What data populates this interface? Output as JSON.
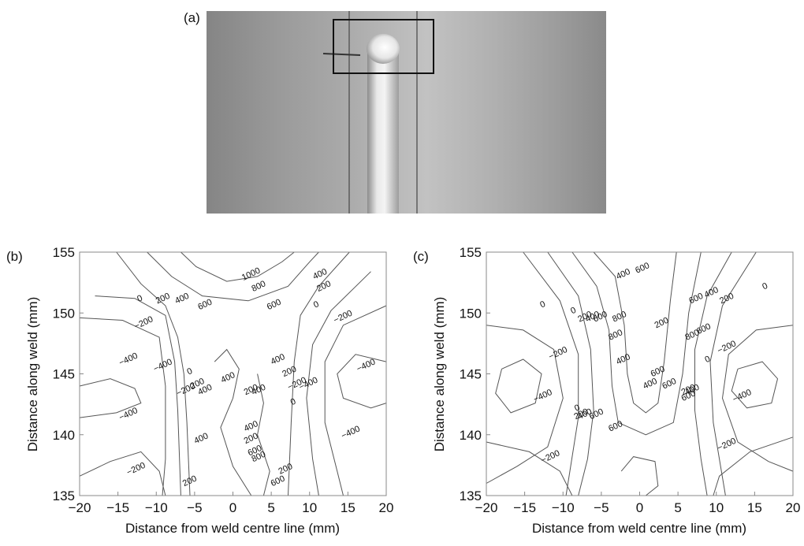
{
  "panel_a": {
    "label": "(a)"
  },
  "chart_data": [
    {
      "panel": "(b)",
      "type": "contour",
      "xlabel": "Distance from weld centre line (mm)",
      "ylabel": "Distance along weld (mm)",
      "xlim": [
        -20,
        20
      ],
      "ylim": [
        135,
        155
      ],
      "xticks": [
        "−20",
        "−15",
        "−10",
        "−5",
        "0",
        "5",
        "10",
        "15",
        "20"
      ],
      "yticks": [
        "135",
        "140",
        "145",
        "150",
        "155"
      ],
      "contour_labels": [
        {
          "text": "1000",
          "x": 2.5,
          "y": 153.0
        },
        {
          "text": "800",
          "x": 3.5,
          "y": 152.0
        },
        {
          "text": "400",
          "x": 11.5,
          "y": 153.0
        },
        {
          "text": "200",
          "x": 12.0,
          "y": 152.0
        },
        {
          "text": "0",
          "x": -12.0,
          "y": 151.0
        },
        {
          "text": "200",
          "x": -9.0,
          "y": 151.0
        },
        {
          "text": "400",
          "x": -6.5,
          "y": 151.0
        },
        {
          "text": "600",
          "x": -3.5,
          "y": 150.5
        },
        {
          "text": "600",
          "x": 5.5,
          "y": 150.5
        },
        {
          "text": "0",
          "x": 11.0,
          "y": 150.5
        },
        {
          "text": "−200",
          "x": -11.5,
          "y": 149.0
        },
        {
          "text": "−200",
          "x": 14.5,
          "y": 149.5
        },
        {
          "text": "−400",
          "x": -13.5,
          "y": 146.0
        },
        {
          "text": "−400",
          "x": -9.0,
          "y": 145.5
        },
        {
          "text": "−400",
          "x": 17.5,
          "y": 145.5
        },
        {
          "text": "0",
          "x": -5.5,
          "y": 145.0
        },
        {
          "text": "−200",
          "x": -6.0,
          "y": 143.5
        },
        {
          "text": "200",
          "x": -4.5,
          "y": 144.0
        },
        {
          "text": "400",
          "x": -3.5,
          "y": 143.5
        },
        {
          "text": "400",
          "x": -0.5,
          "y": 144.5
        },
        {
          "text": "200",
          "x": 2.5,
          "y": 143.5
        },
        {
          "text": "400",
          "x": 3.5,
          "y": 143.5
        },
        {
          "text": "400",
          "x": 6.0,
          "y": 146.0
        },
        {
          "text": "200",
          "x": 7.5,
          "y": 145.0
        },
        {
          "text": "−200",
          "x": 8.5,
          "y": 144.0
        },
        {
          "text": "−400",
          "x": 10.0,
          "y": 144.0
        },
        {
          "text": "0",
          "x": 8.0,
          "y": 142.5
        },
        {
          "text": "−400",
          "x": -13.5,
          "y": 141.5
        },
        {
          "text": "−400",
          "x": 15.5,
          "y": 140.0
        },
        {
          "text": "400",
          "x": 2.5,
          "y": 140.5
        },
        {
          "text": "200",
          "x": 2.5,
          "y": 139.5
        },
        {
          "text": "600",
          "x": 3.0,
          "y": 138.5
        },
        {
          "text": "800",
          "x": 3.5,
          "y": 138.0
        },
        {
          "text": "400",
          "x": -4.0,
          "y": 139.5
        },
        {
          "text": "200",
          "x": 7.0,
          "y": 137.0
        },
        {
          "text": "600",
          "x": 6.0,
          "y": 136.0
        },
        {
          "text": "−200",
          "x": -12.5,
          "y": 137.0
        },
        {
          "text": "200",
          "x": -5.5,
          "y": 136.0
        }
      ]
    },
    {
      "panel": "(c)",
      "type": "contour",
      "xlabel": "Distance from weld centre line (mm)",
      "ylabel": "Distance along weld (mm)",
      "xlim": [
        -20,
        20
      ],
      "ylim": [
        135,
        155
      ],
      "xticks": [
        "−20",
        "−15",
        "−10",
        "−5",
        "0",
        "5",
        "10",
        "15",
        "20"
      ],
      "yticks": [
        "135",
        "140",
        "145",
        "150",
        "155"
      ],
      "contour_labels": [
        {
          "text": "400",
          "x": -2.0,
          "y": 153.0
        },
        {
          "text": "600",
          "x": 0.5,
          "y": 153.5
        },
        {
          "text": "0",
          "x": 16.5,
          "y": 152.0
        },
        {
          "text": "600",
          "x": 7.5,
          "y": 151.0
        },
        {
          "text": "400",
          "x": 9.5,
          "y": 151.5
        },
        {
          "text": "200",
          "x": 11.5,
          "y": 151.0
        },
        {
          "text": "0",
          "x": -12.5,
          "y": 150.5
        },
        {
          "text": "0",
          "x": -8.5,
          "y": 150.0
        },
        {
          "text": "200",
          "x": -7.0,
          "y": 149.5
        },
        {
          "text": "400",
          "x": -6.0,
          "y": 149.5
        },
        {
          "text": "600",
          "x": -5.0,
          "y": 149.5
        },
        {
          "text": "800",
          "x": -2.5,
          "y": 149.5
        },
        {
          "text": "200",
          "x": 3.0,
          "y": 149.0
        },
        {
          "text": "800",
          "x": -3.0,
          "y": 148.0
        },
        {
          "text": "800",
          "x": 7.0,
          "y": 148.0
        },
        {
          "text": "600",
          "x": 8.5,
          "y": 148.5
        },
        {
          "text": "−200",
          "x": 11.5,
          "y": 147.0
        },
        {
          "text": "−200",
          "x": -10.5,
          "y": 146.5
        },
        {
          "text": "400",
          "x": -2.0,
          "y": 146.0
        },
        {
          "text": "600",
          "x": 2.5,
          "y": 145.0
        },
        {
          "text": "400",
          "x": 1.5,
          "y": 144.0
        },
        {
          "text": "0",
          "x": 9.0,
          "y": 146.0
        },
        {
          "text": "600",
          "x": 4.0,
          "y": 144.0
        },
        {
          "text": "200",
          "x": 6.5,
          "y": 143.5
        },
        {
          "text": "400",
          "x": 7.0,
          "y": 143.5
        },
        {
          "text": "600",
          "x": 6.5,
          "y": 143.0
        },
        {
          "text": "−400",
          "x": -12.5,
          "y": 143.0
        },
        {
          "text": "−400",
          "x": 13.5,
          "y": 143.0
        },
        {
          "text": "0",
          "x": -8.0,
          "y": 142.0
        },
        {
          "text": "200",
          "x": -7.5,
          "y": 141.5
        },
        {
          "text": "400",
          "x": -7.0,
          "y": 141.5
        },
        {
          "text": "600",
          "x": -5.5,
          "y": 141.5
        },
        {
          "text": "600",
          "x": -3.0,
          "y": 140.5
        },
        {
          "text": "−200",
          "x": -11.5,
          "y": 138.0
        },
        {
          "text": "−200",
          "x": 11.5,
          "y": 139.0
        }
      ]
    }
  ]
}
